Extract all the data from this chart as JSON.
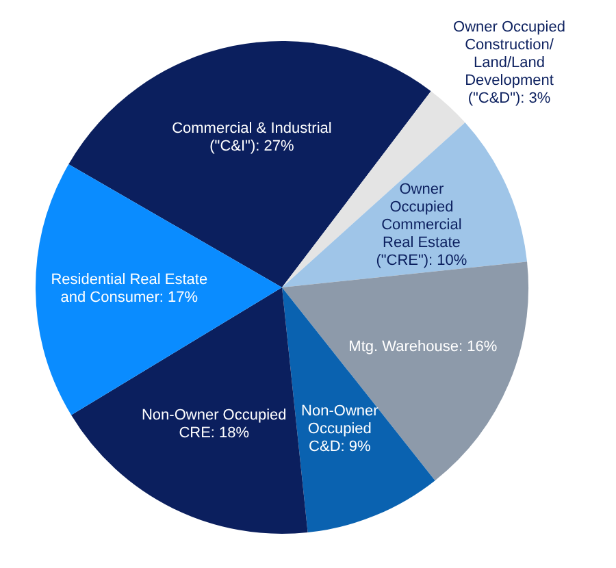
{
  "chart_data": {
    "type": "pie",
    "categories": [
      "Commercial & Industrial (\"C&I\")",
      "Owner Occupied Construction/ Land/Land Development (\"C&D\")",
      "Owner Occupied Commercial Real Estate (\"CRE\")",
      "Mtg. Warehouse",
      "Non-Owner Occupied C&D",
      "Non-Owner Occupied CRE",
      "Residential Real Estate and Consumer"
    ],
    "values": [
      27,
      3,
      10,
      16,
      9,
      18,
      17
    ],
    "value_labels": [
      "27%",
      "3%",
      "10%",
      "16%",
      "9%",
      "18%",
      "17%"
    ],
    "colors": [
      "#0b1f5e",
      "#e4e4e4",
      "#9fc5e8",
      "#8d9aaa",
      "#0a62b0",
      "#0b1f5e",
      "#0a8cff"
    ],
    "legend": false
  }
}
